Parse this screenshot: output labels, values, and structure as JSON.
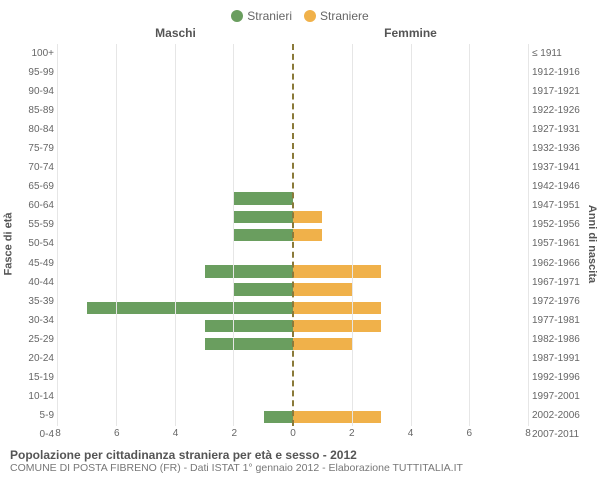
{
  "legend": {
    "male": {
      "label": "Stranieri",
      "color": "#6a9e5f"
    },
    "female": {
      "label": "Straniere",
      "color": "#f0b14a"
    }
  },
  "column_headers": {
    "left": "Maschi",
    "right": "Femmine"
  },
  "axis_titles": {
    "left": "Fasce di età",
    "right": "Anni di nascita"
  },
  "x_axis": {
    "max": 8,
    "ticks": [
      0,
      2,
      4,
      6,
      8
    ]
  },
  "chart": {
    "type": "population-pyramid",
    "background_color": "#ffffff",
    "grid_color": "#e6e6e6",
    "center_line_color": "#8a7a3a",
    "bar_colors": {
      "male": "#6a9e5f",
      "female": "#f0b14a"
    },
    "rows": [
      {
        "age": "100+",
        "birth": "≤ 1911",
        "male": 0,
        "female": 0
      },
      {
        "age": "95-99",
        "birth": "1912-1916",
        "male": 0,
        "female": 0
      },
      {
        "age": "90-94",
        "birth": "1917-1921",
        "male": 0,
        "female": 0
      },
      {
        "age": "85-89",
        "birth": "1922-1926",
        "male": 0,
        "female": 0
      },
      {
        "age": "80-84",
        "birth": "1927-1931",
        "male": 0,
        "female": 0
      },
      {
        "age": "75-79",
        "birth": "1932-1936",
        "male": 0,
        "female": 0
      },
      {
        "age": "70-74",
        "birth": "1937-1941",
        "male": 0,
        "female": 0
      },
      {
        "age": "65-69",
        "birth": "1942-1946",
        "male": 0,
        "female": 0
      },
      {
        "age": "60-64",
        "birth": "1947-1951",
        "male": 2,
        "female": 0
      },
      {
        "age": "55-59",
        "birth": "1952-1956",
        "male": 2,
        "female": 1
      },
      {
        "age": "50-54",
        "birth": "1957-1961",
        "male": 2,
        "female": 1
      },
      {
        "age": "45-49",
        "birth": "1962-1966",
        "male": 0,
        "female": 0
      },
      {
        "age": "40-44",
        "birth": "1967-1971",
        "male": 3,
        "female": 3
      },
      {
        "age": "35-39",
        "birth": "1972-1976",
        "male": 2,
        "female": 2
      },
      {
        "age": "30-34",
        "birth": "1977-1981",
        "male": 7,
        "female": 3
      },
      {
        "age": "25-29",
        "birth": "1982-1986",
        "male": 3,
        "female": 3
      },
      {
        "age": "20-24",
        "birth": "1987-1991",
        "male": 3,
        "female": 2
      },
      {
        "age": "15-19",
        "birth": "1992-1996",
        "male": 0,
        "female": 0
      },
      {
        "age": "10-14",
        "birth": "1997-2001",
        "male": 0,
        "female": 0
      },
      {
        "age": "5-9",
        "birth": "2002-2006",
        "male": 0,
        "female": 0
      },
      {
        "age": "0-4",
        "birth": "2007-2011",
        "male": 1,
        "female": 3
      }
    ]
  },
  "footer": {
    "title": "Popolazione per cittadinanza straniera per età e sesso - 2012",
    "subtitle": "COMUNE DI POSTA FIBRENO (FR) - Dati ISTAT 1° gennaio 2012 - Elaborazione TUTTITALIA.IT"
  }
}
